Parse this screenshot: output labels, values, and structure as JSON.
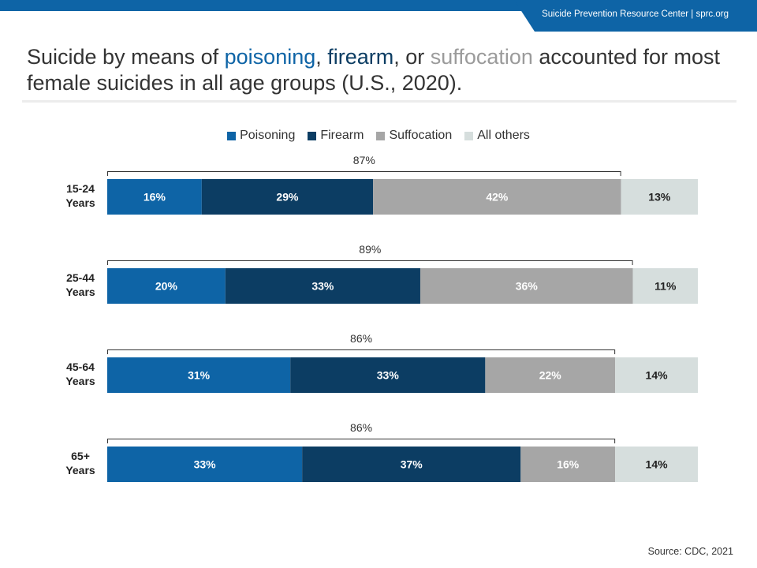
{
  "header": {
    "site_text": "Suicide Prevention Resource Center  |  sprc.org"
  },
  "title": {
    "part1": "Suicide by means of ",
    "poisoning": "poisoning",
    "sep1": ", ",
    "firearm": "firearm",
    "sep2": ", or ",
    "suffocation": "suffocation",
    "part2": " accounted for most female suicides in all age groups (U.S., 2020)."
  },
  "source": "Source: CDC, 2021",
  "colors": {
    "Poisoning": "#0e64a6",
    "Firearm": "#0c3d63",
    "Suffocation": "#a6a6a6",
    "All others": "#d6dedd"
  },
  "chart_data": {
    "type": "bar",
    "orientation": "horizontal",
    "stacked": true,
    "categories": [
      [
        "15-24",
        "Years"
      ],
      [
        "25-44",
        "Years"
      ],
      [
        "45-64",
        "Years"
      ],
      [
        "65+",
        "Years"
      ]
    ],
    "series": [
      {
        "name": "Poisoning",
        "values": [
          16,
          20,
          31,
          33
        ]
      },
      {
        "name": "Firearm",
        "values": [
          29,
          33,
          33,
          37
        ]
      },
      {
        "name": "Suffocation",
        "values": [
          42,
          36,
          22,
          16
        ]
      },
      {
        "name": "All others",
        "values": [
          13,
          11,
          14,
          14
        ]
      }
    ],
    "bracket_totals": [
      "87%",
      "89%",
      "86%",
      "86%"
    ],
    "legend": [
      "Poisoning",
      "Firearm",
      "Suffocation",
      "All others"
    ],
    "legend_position": "top-center",
    "xlim": [
      0,
      100
    ],
    "grid": false
  }
}
